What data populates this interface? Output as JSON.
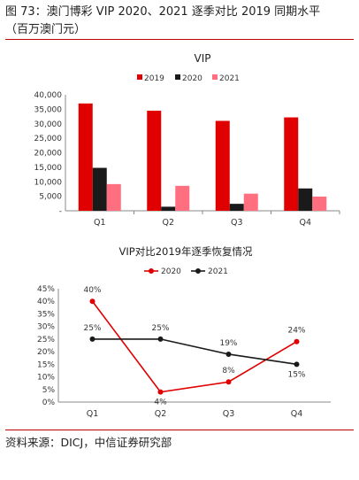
{
  "figure": {
    "title_line1": "图 73：澳门博彩 VIP 2020、2021 逐季对比 2019 同期水平",
    "title_line2": "（百万澳门元）",
    "source": "资料来源：DICJ，中信证券研究部"
  },
  "colors": {
    "c2019": "#e00000",
    "c2020": "#1a1a1a",
    "c2021": "#ff6f7f",
    "rule": "#c00000",
    "line2020": "#e00000",
    "line2021": "#1a1a1a"
  },
  "chart_data": [
    {
      "type": "bar",
      "title": "VIP",
      "categories": [
        "Q1",
        "Q2",
        "Q3",
        "Q4"
      ],
      "series": [
        {
          "name": "2019",
          "values": [
            37000,
            34500,
            31000,
            32200
          ]
        },
        {
          "name": "2020",
          "values": [
            14800,
            1400,
            2400,
            7700
          ]
        },
        {
          "name": "2021",
          "values": [
            9200,
            8600,
            5900,
            4900
          ]
        }
      ],
      "ylim": [
        0,
        40000
      ],
      "yticks": [
        "40,000",
        "35,000",
        "30,000",
        "25,000",
        "20,000",
        "15,000",
        "10,000",
        "5,000",
        "-"
      ],
      "legend_position": "top",
      "grid": false
    },
    {
      "type": "line",
      "title": "VIP对比2019年逐季恢复情况",
      "categories": [
        "Q1",
        "Q2",
        "Q3",
        "Q4"
      ],
      "series": [
        {
          "name": "2020",
          "values": [
            40,
            4,
            8,
            24
          ],
          "labels": [
            "40%",
            "4%",
            "8%",
            "24%"
          ]
        },
        {
          "name": "2021",
          "values": [
            25,
            25,
            19,
            15
          ],
          "labels": [
            "25%",
            "25%",
            "19%",
            "15%"
          ]
        }
      ],
      "ylim": [
        0,
        45
      ],
      "yticks": [
        "45%",
        "40%",
        "35%",
        "30%",
        "25%",
        "20%",
        "15%",
        "10%",
        "5%",
        "0%"
      ],
      "legend_position": "top",
      "grid": false
    }
  ]
}
